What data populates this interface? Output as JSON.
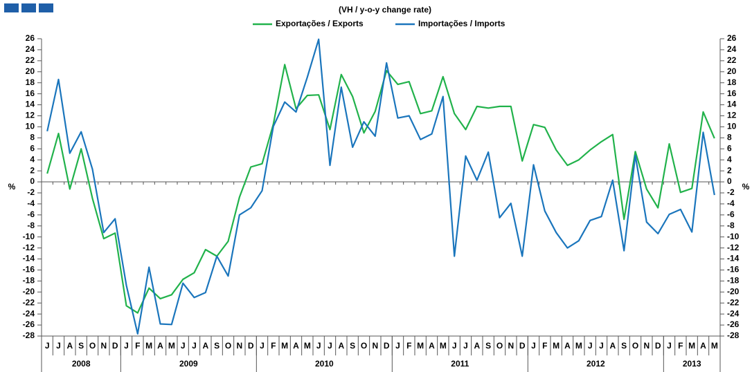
{
  "chart_data": {
    "type": "line",
    "title": "(VH / y-o-y change rate)",
    "y_label": "%",
    "y2_label": "%",
    "categories": [
      "J",
      "J",
      "A",
      "S",
      "O",
      "N",
      "D",
      "J",
      "F",
      "M",
      "A",
      "M",
      "J",
      "J",
      "A",
      "S",
      "O",
      "N",
      "D",
      "J",
      "F",
      "M",
      "A",
      "M",
      "J",
      "J",
      "A",
      "S",
      "O",
      "N",
      "D",
      "J",
      "F",
      "M",
      "A",
      "M",
      "J",
      "J",
      "A",
      "S",
      "O",
      "N",
      "D",
      "J",
      "F",
      "M",
      "A",
      "M",
      "J",
      "J",
      "A",
      "S",
      "O",
      "N",
      "D",
      "J",
      "F",
      "M",
      "A",
      "M"
    ],
    "years": [
      "2008",
      "2009",
      "2010",
      "2011",
      "2012",
      "2013"
    ],
    "series": [
      {
        "name": "Exportações / Exports",
        "color": "#21b24b",
        "values": [
          1.5,
          8.8,
          -1.3,
          6,
          -3,
          -10.3,
          -9.3,
          -22.5,
          -23.8,
          -19.3,
          -21.2,
          -20.5,
          -17.7,
          -16.5,
          -12.3,
          -13.5,
          -10.8,
          -2.8,
          2.7,
          3.3,
          10.5,
          21.3,
          13.3,
          15.7,
          15.8,
          9.5,
          19.5,
          15.5,
          8.9,
          12.8,
          20.2,
          17.7,
          18.2,
          12.4,
          12.9,
          19.1,
          12.4,
          9.5,
          13.7,
          13.4,
          13.7,
          13.7,
          3.8,
          10.4,
          9.9,
          5.8,
          3,
          4,
          5.8,
          7.3,
          8.6,
          -6.8,
          5.5,
          -1.3,
          -4.7,
          6.9,
          -1.9,
          -1.2,
          12.7,
          7.9
        ]
      },
      {
        "name": "Importações / Imports",
        "color": "#1a75bc",
        "values": [
          9.2,
          18.6,
          5.2,
          9.1,
          2.3,
          -9.2,
          -6.7,
          -18.8,
          -27.6,
          -15.5,
          -25.8,
          -25.9,
          -18.4,
          -21,
          -20.1,
          -13.5,
          -17.1,
          -6,
          -4.7,
          -1.6,
          10.1,
          14.5,
          12.7,
          19,
          25.9,
          3,
          17.2,
          6.3,
          10.9,
          8.3,
          21.6,
          11.6,
          12,
          7.7,
          8.7,
          15.5,
          -13.5,
          4.7,
          0.3,
          5.4,
          -6.5,
          -3.9,
          -13.5,
          3.1,
          -5.3,
          -9.2,
          -12,
          -10.7,
          -7,
          -6.3,
          0.3,
          -12.5,
          4.8,
          -7.3,
          -9.4,
          -5.9,
          -5,
          -9.1,
          9,
          -2.4
        ]
      }
    ],
    "ylim": [
      -28,
      26
    ],
    "yticks": [
      -28,
      -26,
      -24,
      -22,
      -20,
      -18,
      -16,
      -14,
      -12,
      -10,
      -8,
      -6,
      -4,
      -2,
      0,
      2,
      4,
      6,
      8,
      10,
      12,
      14,
      16,
      18,
      20,
      22,
      24,
      26
    ],
    "y2lim": [
      -28,
      26
    ],
    "y2ticks": [
      -28,
      -26,
      -24,
      -22,
      -20,
      -18,
      -16,
      -14,
      -12,
      -10,
      -8,
      -6,
      -4,
      -2,
      0,
      2,
      4,
      6,
      8,
      10,
      12,
      14,
      16,
      18,
      20,
      22,
      24,
      26
    ],
    "grid": false
  }
}
